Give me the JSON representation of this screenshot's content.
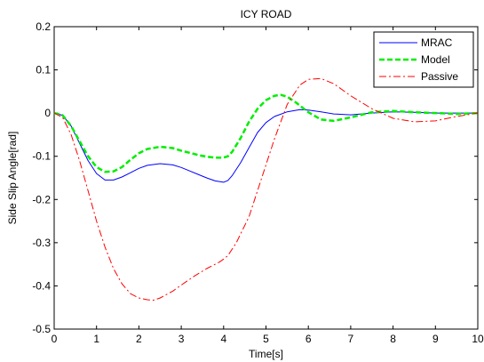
{
  "chart_data": {
    "type": "line",
    "title": "ICY ROAD",
    "xlabel": "Time[s]",
    "ylabel": "Side Slip Angle[rad]",
    "xlim": [
      0,
      10
    ],
    "ylim": [
      -0.5,
      0.2
    ],
    "xticks": [
      0,
      1,
      2,
      3,
      4,
      5,
      6,
      7,
      8,
      9,
      10
    ],
    "xtick_labels": [
      "0",
      "1",
      "2",
      "3",
      "4",
      "5",
      "6",
      "7",
      "8",
      "9",
      "10"
    ],
    "yticks": [
      -0.5,
      -0.4,
      -0.3,
      -0.2,
      -0.1,
      0,
      0.1,
      0.2
    ],
    "ytick_labels": [
      "-0.5",
      "-0.4",
      "-0.3",
      "-0.2",
      "-0.1",
      "0",
      "0.1",
      "0.2"
    ],
    "grid": false,
    "legend_position": "top-right",
    "series": [
      {
        "name": "MRAC",
        "color": "#0000ff",
        "style": "solid",
        "x": [
          0,
          0.2,
          0.4,
          0.6,
          0.8,
          1.0,
          1.2,
          1.4,
          1.6,
          1.8,
          2.0,
          2.2,
          2.5,
          2.8,
          3.0,
          3.2,
          3.4,
          3.6,
          3.8,
          4.0,
          4.1,
          4.2,
          4.4,
          4.6,
          4.8,
          5.0,
          5.2,
          5.5,
          5.8,
          6.0,
          6.3,
          6.6,
          7.0,
          7.5,
          8.0,
          8.5,
          9.0,
          9.5,
          10.0
        ],
        "y": [
          0,
          -0.005,
          -0.03,
          -0.07,
          -0.11,
          -0.14,
          -0.155,
          -0.155,
          -0.148,
          -0.138,
          -0.128,
          -0.121,
          -0.117,
          -0.12,
          -0.126,
          -0.134,
          -0.142,
          -0.15,
          -0.157,
          -0.16,
          -0.156,
          -0.145,
          -0.115,
          -0.08,
          -0.045,
          -0.022,
          -0.008,
          0.003,
          0.008,
          0.007,
          0.003,
          -0.002,
          -0.004,
          0.0,
          0.003,
          0.002,
          0.0,
          0.0,
          0.0
        ]
      },
      {
        "name": "Model",
        "color": "#00ee00",
        "style": "dashed",
        "x": [
          0,
          0.2,
          0.4,
          0.6,
          0.8,
          1.0,
          1.2,
          1.4,
          1.6,
          1.8,
          2.0,
          2.2,
          2.5,
          2.8,
          3.0,
          3.2,
          3.4,
          3.6,
          3.8,
          4.0,
          4.1,
          4.2,
          4.4,
          4.6,
          4.8,
          5.0,
          5.2,
          5.35,
          5.5,
          5.7,
          6.0,
          6.3,
          6.6,
          7.0,
          7.5,
          8.0,
          8.5,
          9.0,
          9.5,
          10.0
        ],
        "y": [
          0,
          -0.005,
          -0.03,
          -0.065,
          -0.1,
          -0.125,
          -0.136,
          -0.135,
          -0.125,
          -0.108,
          -0.093,
          -0.083,
          -0.078,
          -0.081,
          -0.087,
          -0.092,
          -0.097,
          -0.101,
          -0.103,
          -0.103,
          -0.1,
          -0.09,
          -0.058,
          -0.02,
          0.01,
          0.03,
          0.04,
          0.042,
          0.038,
          0.025,
          0.002,
          -0.015,
          -0.018,
          -0.01,
          0.002,
          0.005,
          0.002,
          0.0,
          -0.002,
          0.0
        ]
      },
      {
        "name": "Passive",
        "color": "#ff0000",
        "style": "dashdot",
        "x": [
          0,
          0.2,
          0.4,
          0.6,
          0.8,
          1.0,
          1.2,
          1.4,
          1.6,
          1.8,
          2.0,
          2.2,
          2.35,
          2.5,
          2.8,
          3.0,
          3.3,
          3.6,
          3.9,
          4.0,
          4.1,
          4.3,
          4.6,
          4.9,
          5.2,
          5.5,
          5.8,
          6.0,
          6.3,
          6.6,
          7.0,
          7.5,
          8.0,
          8.5,
          9.0,
          9.5,
          10.0
        ],
        "y": [
          0,
          -0.01,
          -0.05,
          -0.11,
          -0.18,
          -0.25,
          -0.31,
          -0.36,
          -0.395,
          -0.418,
          -0.428,
          -0.432,
          -0.433,
          -0.428,
          -0.412,
          -0.398,
          -0.378,
          -0.36,
          -0.345,
          -0.338,
          -0.33,
          -0.3,
          -0.24,
          -0.15,
          -0.06,
          0.02,
          0.065,
          0.078,
          0.08,
          0.068,
          0.04,
          0.01,
          -0.012,
          -0.02,
          -0.018,
          -0.008,
          0.0
        ]
      }
    ]
  }
}
